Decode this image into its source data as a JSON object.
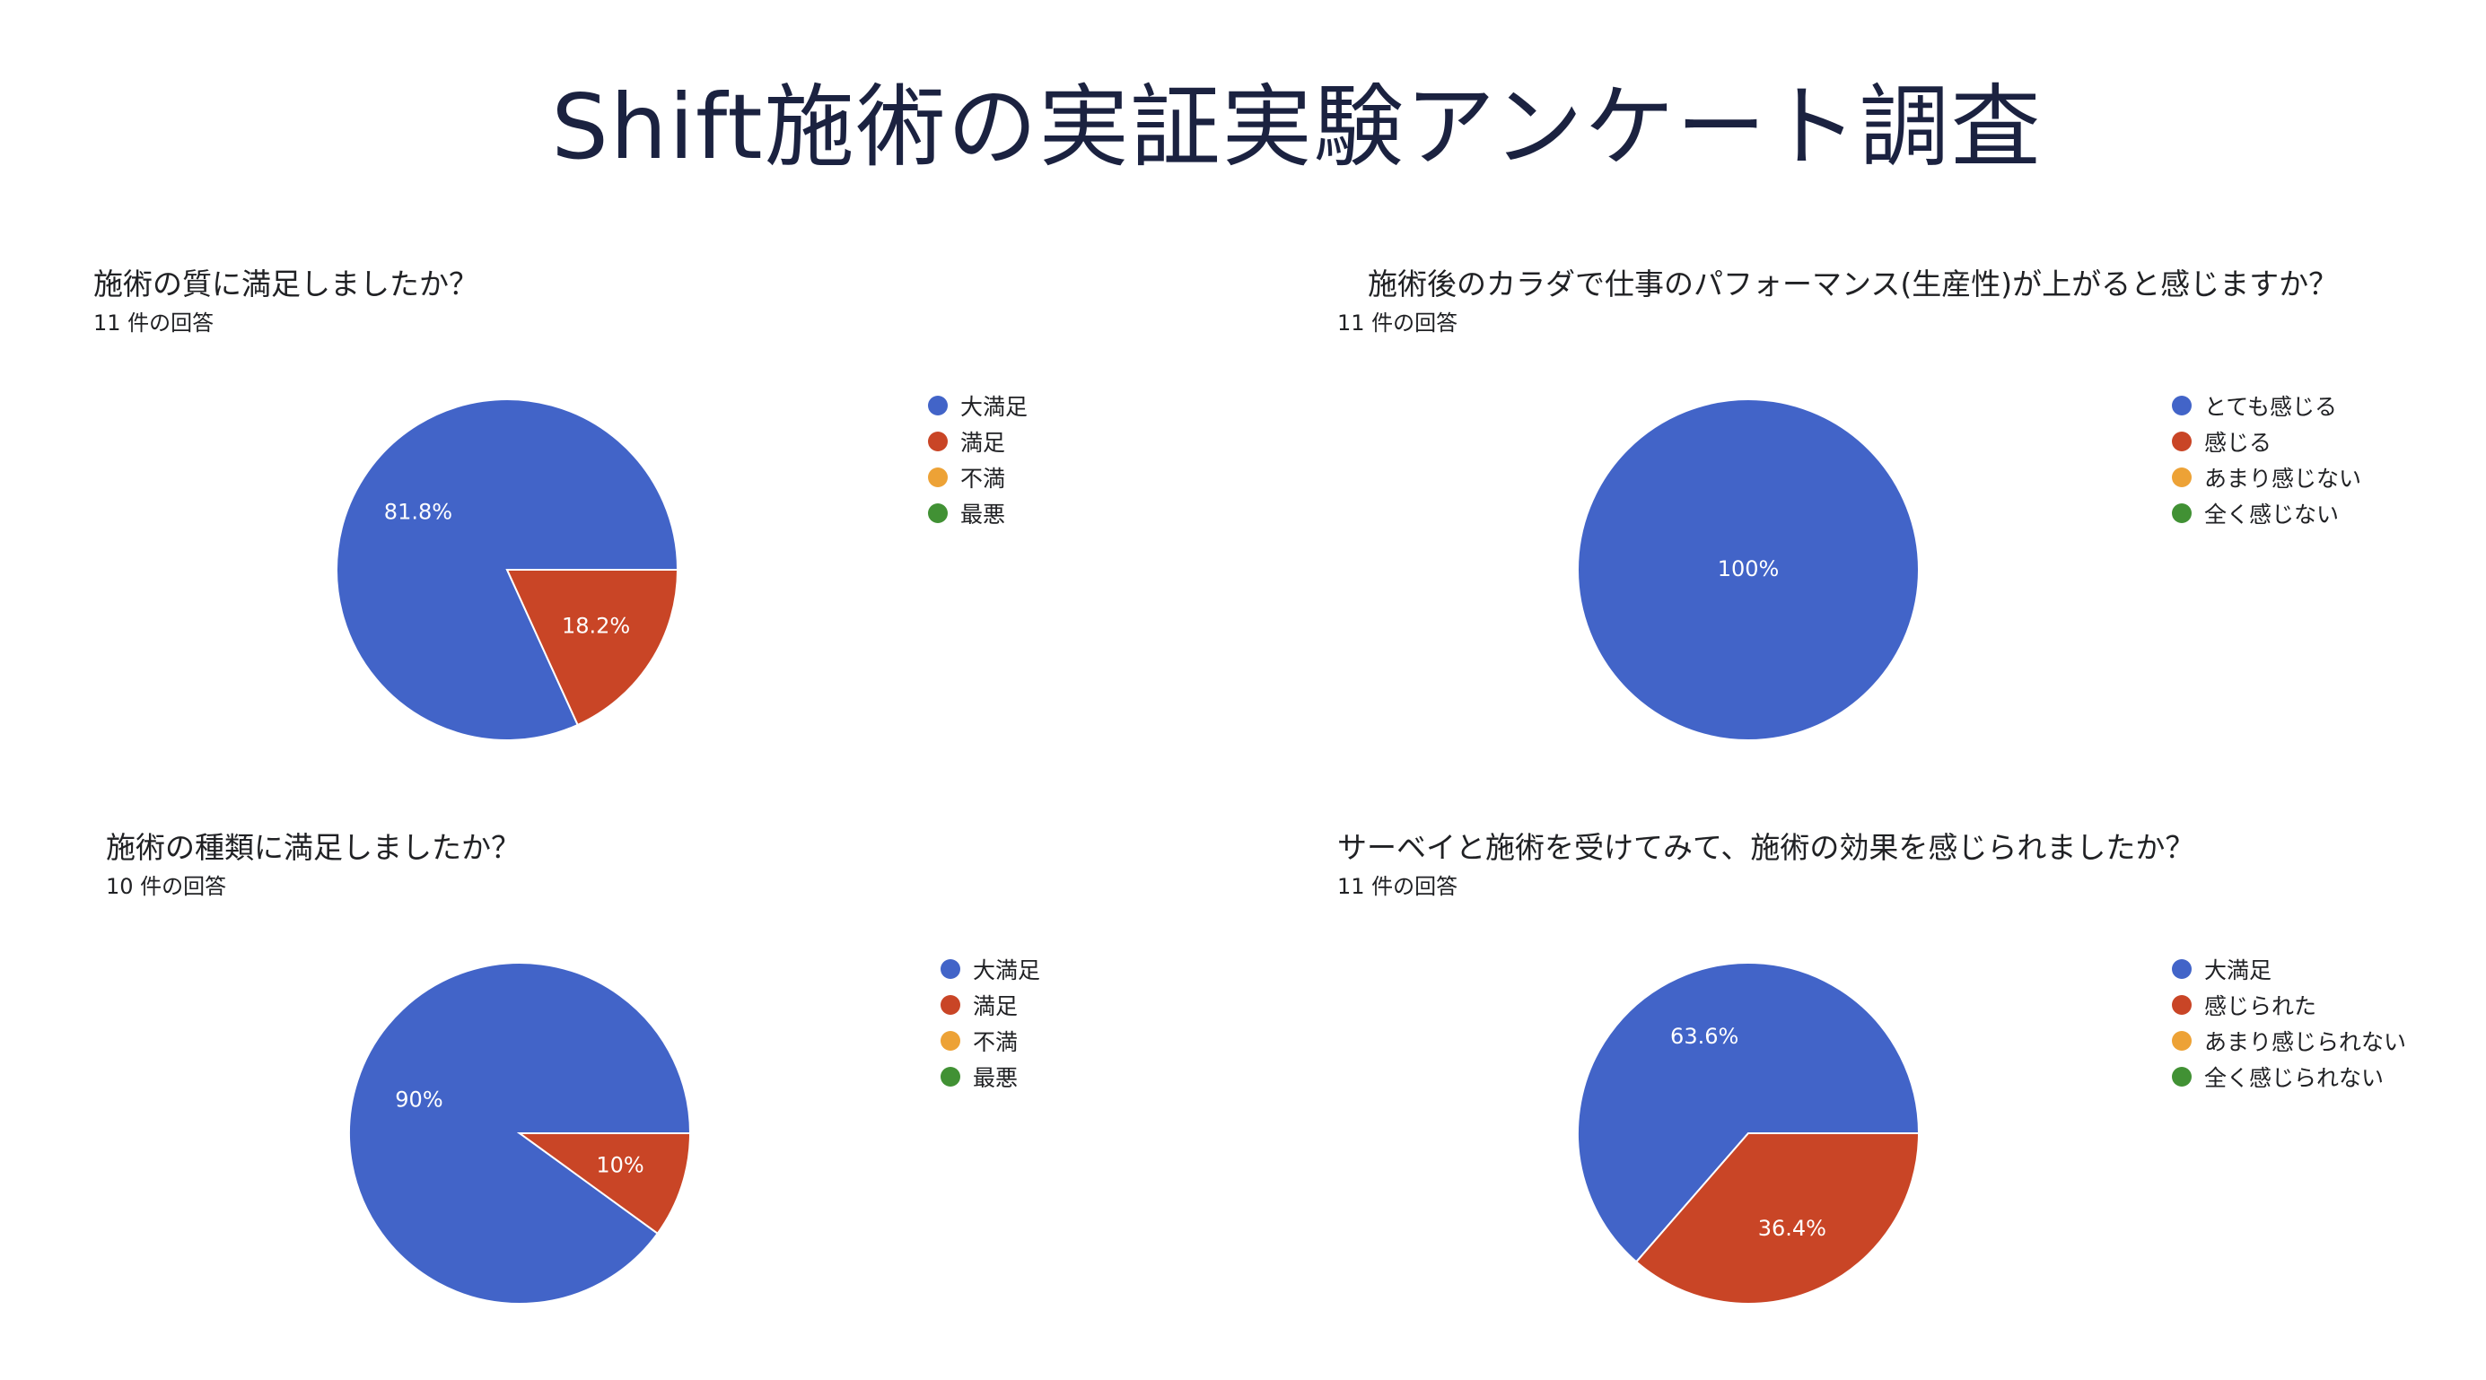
{
  "page_title": "Shift施術の実証実験アンケート調査",
  "colors": {
    "blue": "#4264c8",
    "red": "#c94526",
    "orange": "#eda236",
    "green": "#419134"
  },
  "chart_data": [
    {
      "type": "pie",
      "title": "施術の質に満足しましたか？",
      "subtitle": "11 件の回答",
      "categories": [
        "大満足",
        "満足",
        "不満",
        "最悪"
      ],
      "values": [
        81.8,
        18.2,
        0,
        0
      ],
      "labels": [
        "81.8%",
        "18.2%",
        "",
        ""
      ]
    },
    {
      "type": "pie",
      "title": "施術後のカラダで仕事のパフォーマンス(生産性)が上がると感じますか？",
      "subtitle": "11 件の回答",
      "categories": [
        "とても感じる",
        "感じる",
        "あまり感じない",
        "全く感じない"
      ],
      "values": [
        100,
        0,
        0,
        0
      ],
      "labels": [
        "100%",
        "",
        "",
        ""
      ]
    },
    {
      "type": "pie",
      "title": "施術の種類に満足しましたか？",
      "subtitle": "10 件の回答",
      "categories": [
        "大満足",
        "満足",
        "不満",
        "最悪"
      ],
      "values": [
        90,
        10,
        0,
        0
      ],
      "labels": [
        "90%",
        "10%",
        "",
        ""
      ]
    },
    {
      "type": "pie",
      "title": "サーベイと施術を受けてみて、施術の効果を感じられましたか？",
      "subtitle": "11 件の回答",
      "categories": [
        "大満足",
        "感じられた",
        "あまり感じられない",
        "全く感じられない"
      ],
      "values": [
        63.6,
        36.4,
        0,
        0
      ],
      "labels": [
        "63.6%",
        "36.4%",
        "",
        ""
      ]
    }
  ]
}
